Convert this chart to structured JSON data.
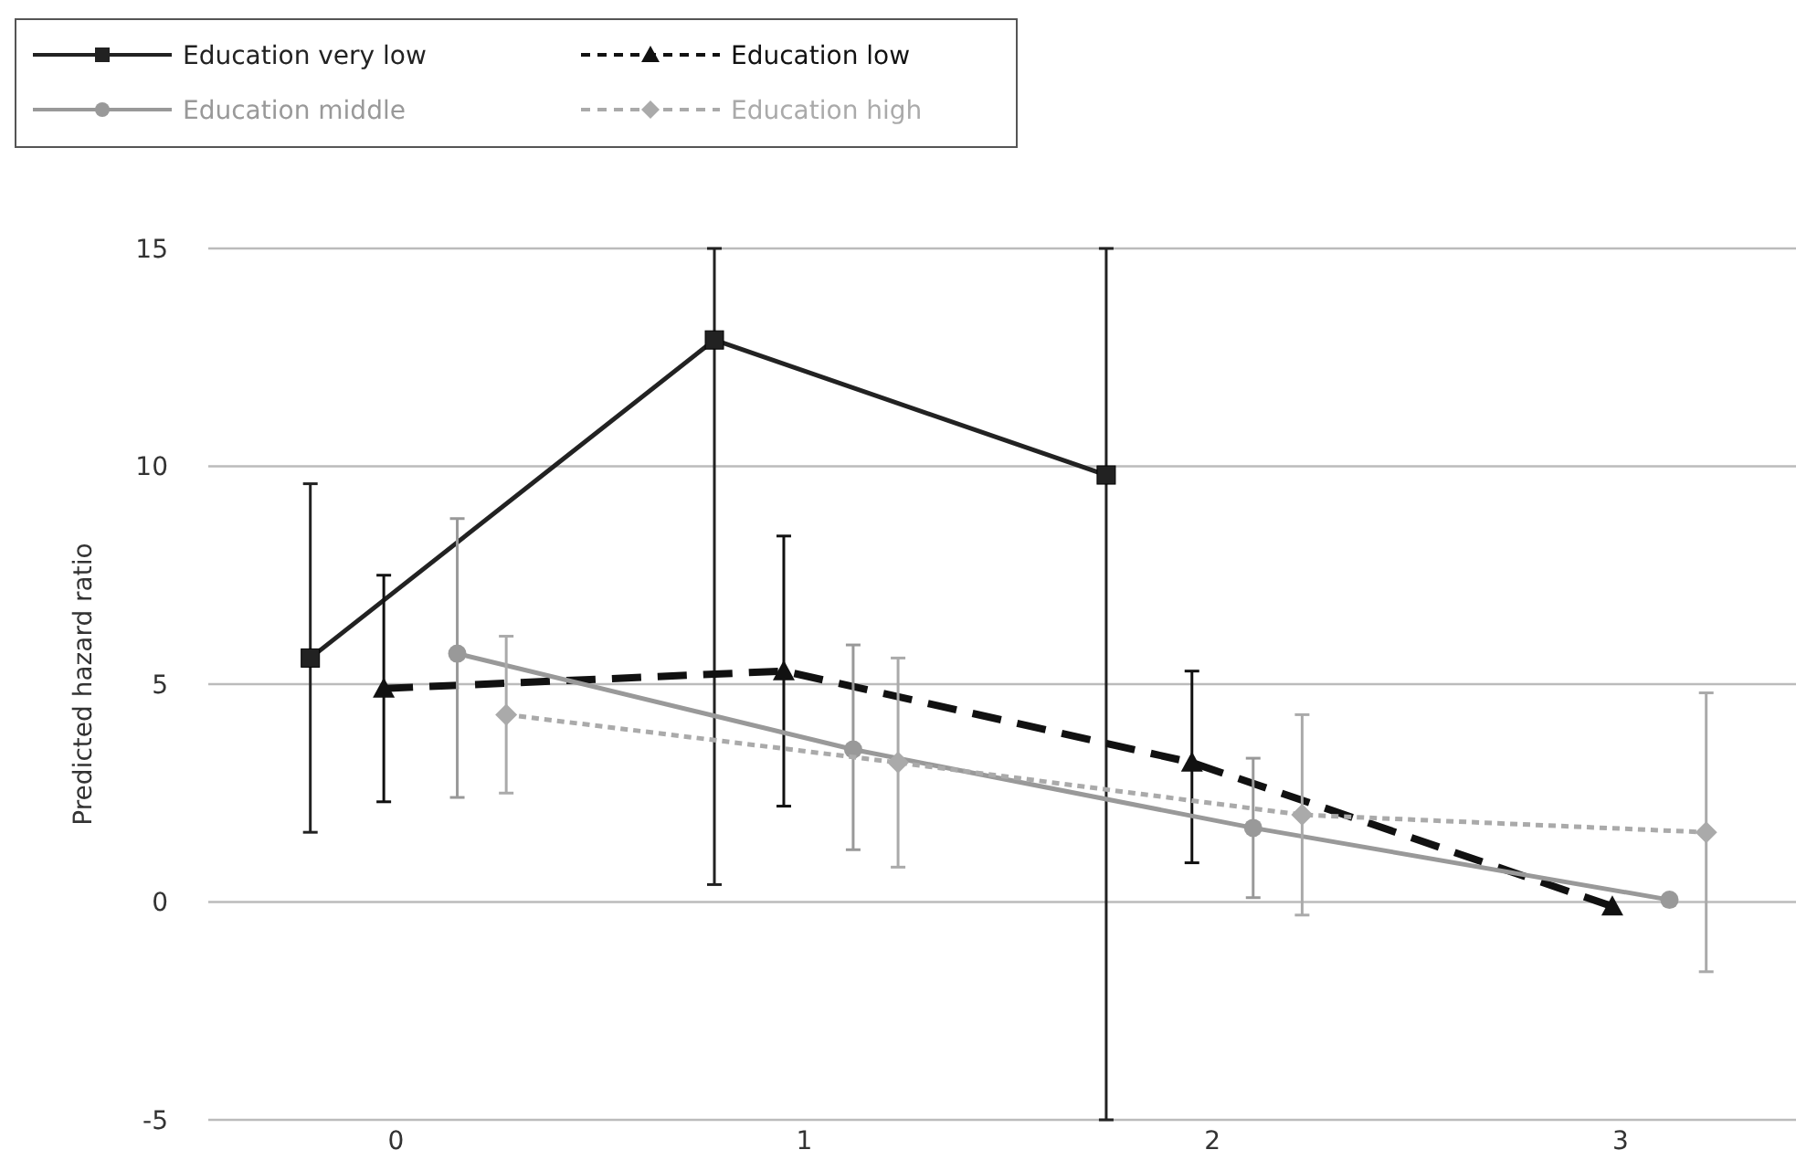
{
  "chart_data": {
    "type": "line",
    "ylabel": "Predicted hazard ratio",
    "xlim": [
      -0.46,
      3.43
    ],
    "xticks": [
      0,
      1,
      2,
      3
    ],
    "ylim": [
      -5,
      15
    ],
    "yticks": [
      -5,
      0,
      5,
      10,
      15
    ],
    "grid": "y",
    "legend": "top left",
    "series": [
      {
        "name": "Education very low",
        "color": "#222222",
        "marker": "square",
        "line_style": "solid",
        "x": [
          -0.21,
          0.78,
          1.74
        ],
        "values": [
          5.6,
          12.9,
          9.8
        ],
        "errors": [
          [
            1.6,
            9.6
          ],
          [
            0.4,
            15
          ],
          [
            -5,
            15
          ]
        ]
      },
      {
        "name": "Education low",
        "color": "#111111",
        "marker": "triangle",
        "line_style": "dashed",
        "x": [
          -0.03,
          0.95,
          1.95,
          2.98
        ],
        "values": [
          4.9,
          5.3,
          3.2,
          -0.1
        ],
        "errors": [
          [
            2.3,
            7.5
          ],
          [
            2.2,
            8.4
          ],
          [
            0.9,
            5.3
          ],
          null
        ]
      },
      {
        "name": "Education middle",
        "color": "#999999",
        "marker": "circle",
        "line_style": "solid",
        "x": [
          0.15,
          1.12,
          2.1,
          3.12
        ],
        "values": [
          5.7,
          3.5,
          1.7,
          0.05
        ],
        "errors": [
          [
            2.4,
            8.8
          ],
          [
            1.2,
            5.9
          ],
          [
            0.1,
            3.3
          ],
          null
        ]
      },
      {
        "name": "Education high",
        "color": "#aaaaaa",
        "marker": "diamond",
        "line_style": "dotted",
        "x": [
          0.27,
          1.23,
          2.22,
          3.21
        ],
        "values": [
          4.3,
          3.2,
          2.0,
          1.6
        ],
        "errors": [
          [
            2.5,
            6.1
          ],
          [
            0.8,
            5.6
          ],
          [
            -0.3,
            4.3
          ],
          [
            -1.6,
            4.8
          ]
        ]
      }
    ]
  }
}
